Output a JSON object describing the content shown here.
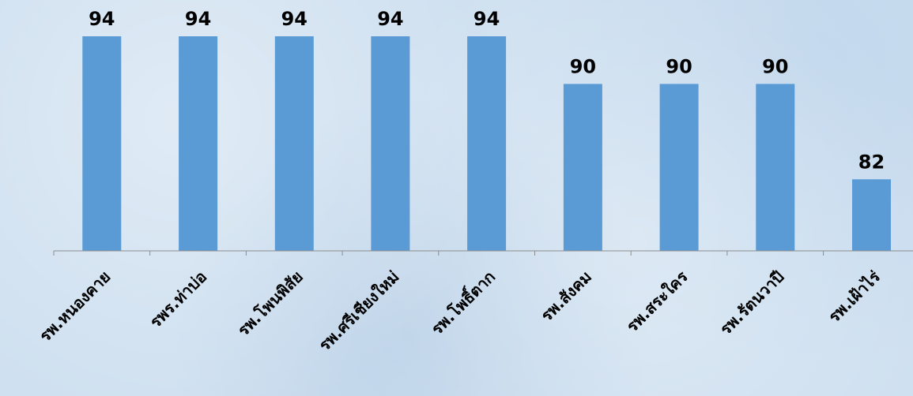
{
  "chart_data": {
    "type": "bar",
    "categories": [
      "รพ.หนองคาย",
      "รพร.ท่าบ่อ",
      "รพ.โพนพิสัย",
      "รพ.ศรีเชียงใหม่",
      "รพ.โพธิ์ตาก",
      "รพ.สังคม",
      "รพ.สระใคร",
      "รพ.รัตนวาปี",
      "รพ.เฝ้าไร่"
    ],
    "values": [
      94,
      94,
      94,
      94,
      94,
      90,
      90,
      90,
      82
    ],
    "ylim": [
      76,
      94
    ],
    "grid": false,
    "legend": "none",
    "bar_color": "#5b9bd5",
    "data_labels": true
  }
}
